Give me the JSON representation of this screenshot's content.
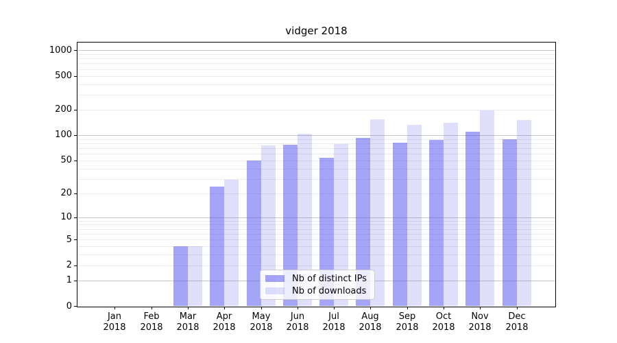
{
  "title": "vidger 2018",
  "chart_data": {
    "type": "bar",
    "title": "vidger 2018",
    "xlabel": "",
    "ylabel": "",
    "yscale": "log1p",
    "ylim": [
      0,
      1230
    ],
    "y_ticks": [
      0,
      1,
      2,
      5,
      10,
      20,
      50,
      100,
      200,
      500,
      1000
    ],
    "y_major_gridlines": [
      1,
      10,
      100,
      1000
    ],
    "grid": "both",
    "legend_position": "lower center inside plot",
    "categories": [
      "Jan",
      "Feb",
      "Mar",
      "Apr",
      "May",
      "Jun",
      "Jul",
      "Aug",
      "Sep",
      "Oct",
      "Nov",
      "Dec"
    ],
    "x_year_label": "2018",
    "series": [
      {
        "name": "Nb of distinct IPs",
        "color": "rgba(75,75,240,0.5)",
        "values": [
          0,
          0,
          4,
          24,
          50,
          77,
          54,
          92,
          82,
          88,
          110,
          90
        ]
      },
      {
        "name": "Nb of downloads",
        "color": "rgba(75,75,240,0.18)",
        "values": [
          0,
          0,
          4,
          29,
          75,
          103,
          79,
          154,
          131,
          140,
          196,
          151
        ]
      }
    ]
  },
  "colors": {
    "grid_major": "#c6c6c6",
    "grid_minor": "#eaeaea",
    "spine": "#000000",
    "background": "#ffffff"
  }
}
